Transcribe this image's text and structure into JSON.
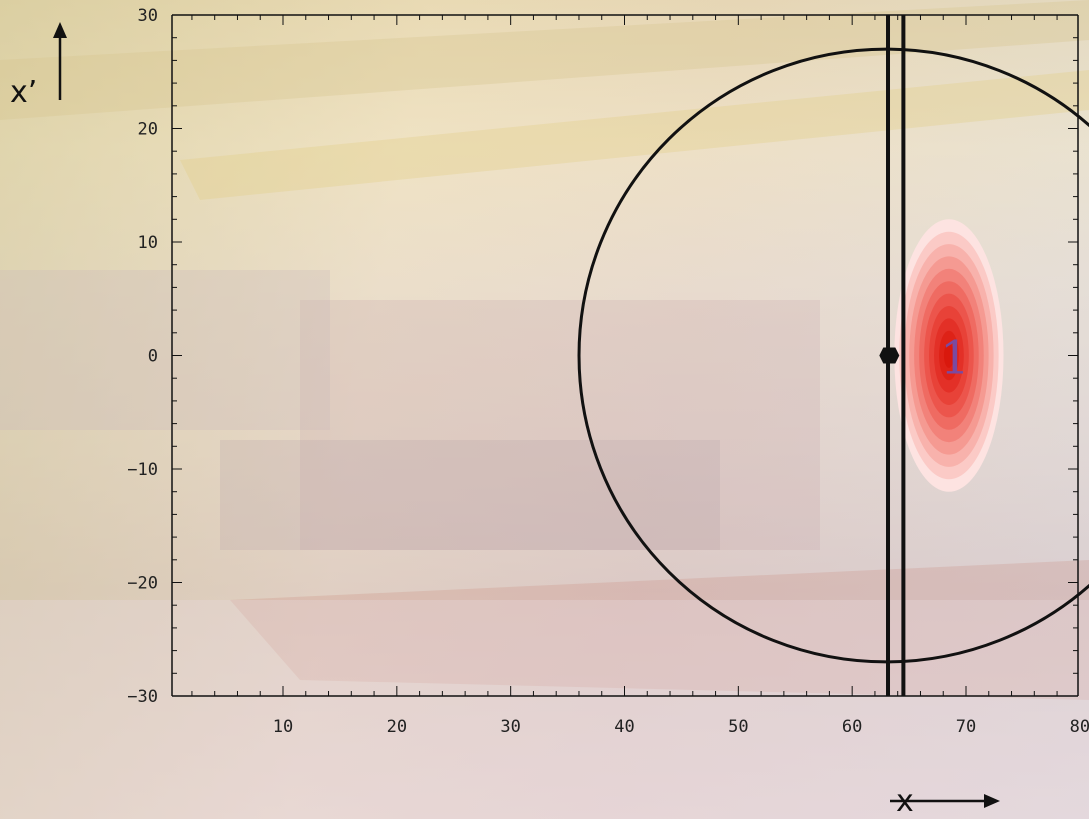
{
  "chart_data": {
    "type": "scatter",
    "title": "",
    "xlabel": "x",
    "ylabel": "x’",
    "xlim": [
      0,
      80
    ],
    "ylim": [
      -30,
      30
    ],
    "xticks": [
      10,
      20,
      30,
      40,
      50,
      60,
      70,
      80
    ],
    "yticks": [
      30,
      20,
      10,
      0,
      -10,
      -20,
      -30
    ],
    "grid": false,
    "phase_space_circle": {
      "center_x": 63,
      "center_y": 0,
      "radius": 27
    },
    "septum_wires": [
      63.5,
      64.5
    ],
    "closed_orbit_point": {
      "x": 63,
      "y": 0
    },
    "beam_distribution": {
      "label": "1",
      "center_x": 68.5,
      "center_y": 0,
      "sigma_x": 4.8,
      "sigma_y": 12,
      "contour_levels": 11,
      "colors": [
        "#fde3e1",
        "#fbcac6",
        "#f8b2ac",
        "#f59a92",
        "#f2827a",
        "#ef6b62",
        "#ec554c",
        "#e84238",
        "#e33027",
        "#de2217",
        "#d9180d"
      ]
    },
    "axis_color": "#111111"
  }
}
